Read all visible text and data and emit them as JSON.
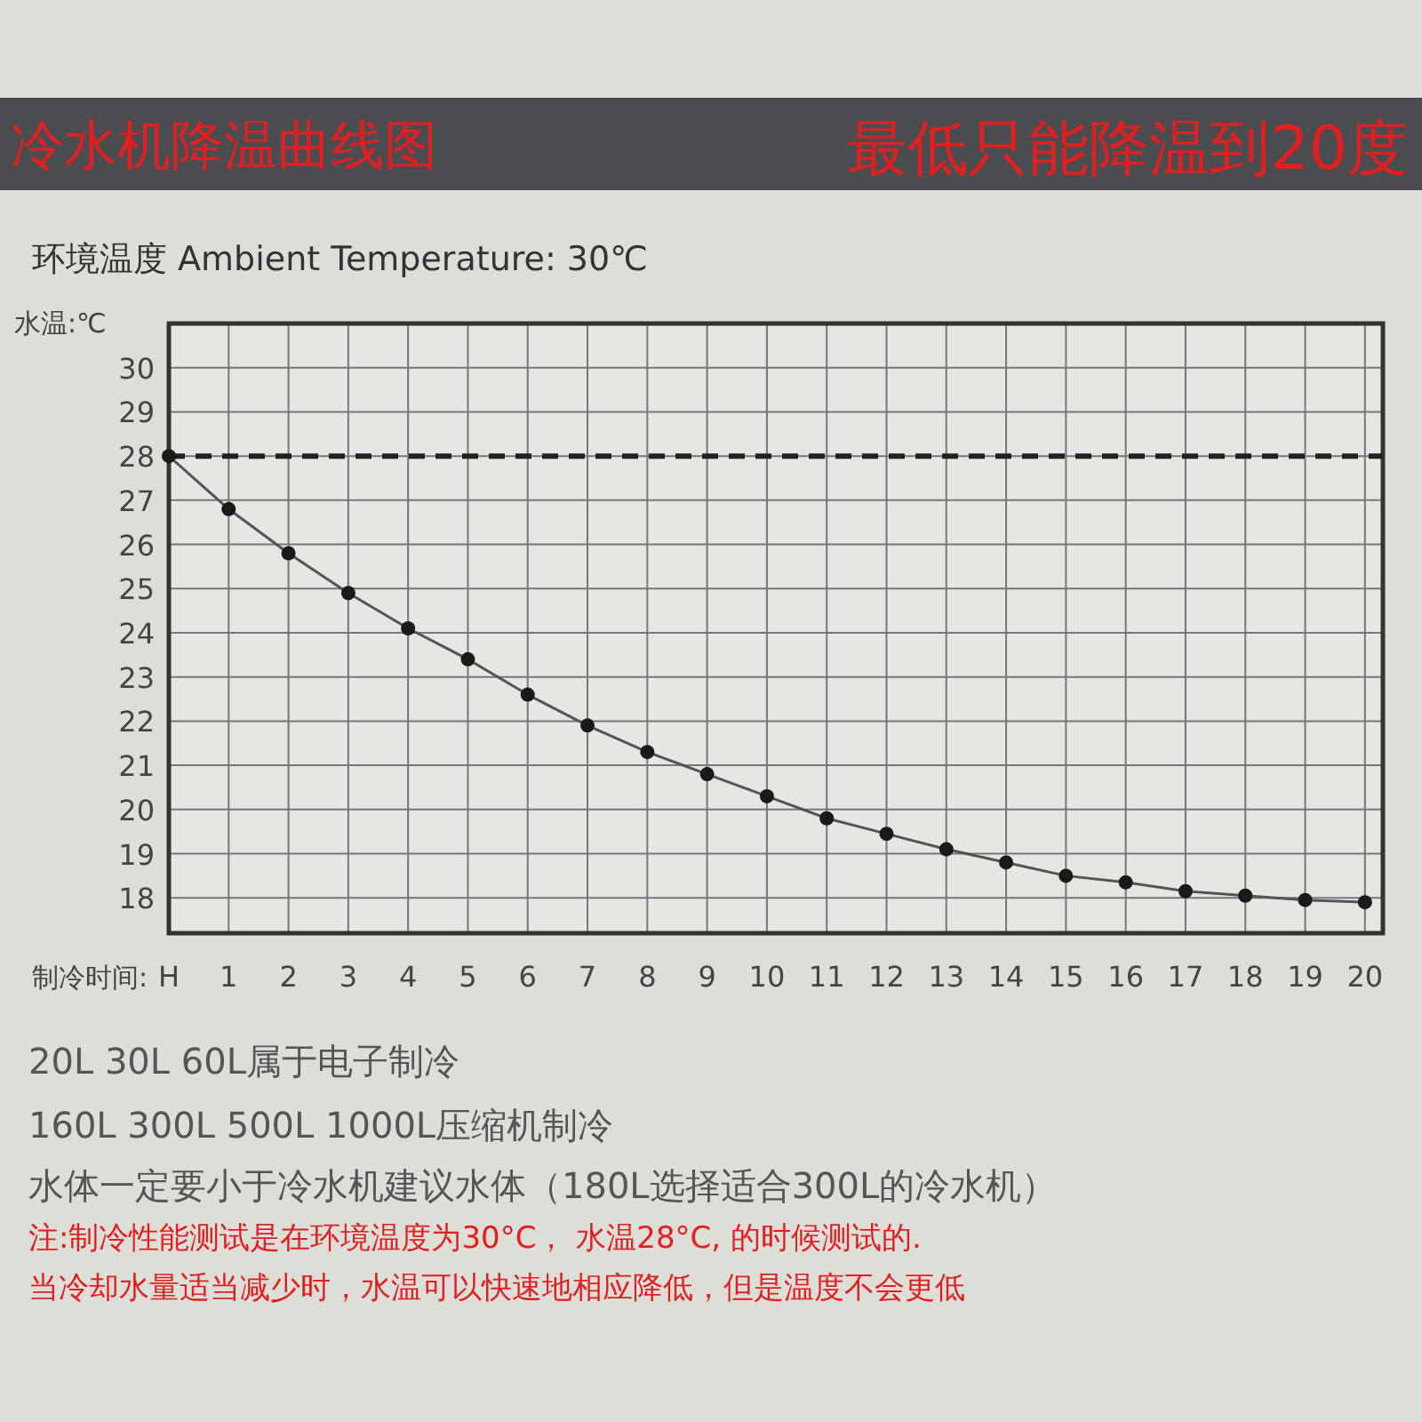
{
  "chart_data": {
    "type": "line",
    "title": "冷水机降温曲线图",
    "subtitle": "环境温度 Ambient Temperature: 30℃",
    "ylabel": "水温:℃",
    "xlabel": "制冷时间:",
    "x": [
      0,
      1,
      2,
      3,
      4,
      5,
      6,
      7,
      8,
      9,
      10,
      11,
      12,
      13,
      14,
      15,
      16,
      17,
      18,
      19,
      20
    ],
    "series": [
      {
        "color": "#555555",
        "values": [
          28,
          26.8,
          25.8,
          24.9,
          24.1,
          23.4,
          22.6,
          21.9,
          21.3,
          20.8,
          20.3,
          19.8,
          19.45,
          19.1,
          18.8,
          18.5,
          18.35,
          18.15,
          18.05,
          17.95,
          17.9
        ]
      }
    ],
    "xlim": [
      0,
      20.3
    ],
    "xticks": [
      {
        "value": 0,
        "label": "H"
      },
      1,
      2,
      3,
      4,
      5,
      6,
      7,
      8,
      9,
      10,
      11,
      12,
      13,
      14,
      15,
      16,
      17,
      18,
      19,
      20
    ],
    "ylim": [
      17.2,
      31
    ],
    "yticks": [
      18,
      19,
      20,
      21,
      22,
      23,
      24,
      25,
      26,
      27,
      28,
      29,
      30
    ],
    "ref_lines": [
      {
        "axis": "y",
        "value": 28,
        "color": "#222222",
        "line_style": "dashed"
      }
    ],
    "grid": true,
    "marker": "circle",
    "annotations": [
      "最低只能降温到20度",
      "20L 30L 60L属于电子制冷",
      "160L 300L 500L 1000L压缩机制冷",
      "水体一定要小于冷水机建议水体（180L选择适合300L的冷水机）",
      "注:制冷性能测试是在环境温度为30°C， 水温28°C, 的时候测试的.",
      "当冷却水量适当减少时，水温可以快速地相应降低，但是温度不会更低"
    ]
  }
}
